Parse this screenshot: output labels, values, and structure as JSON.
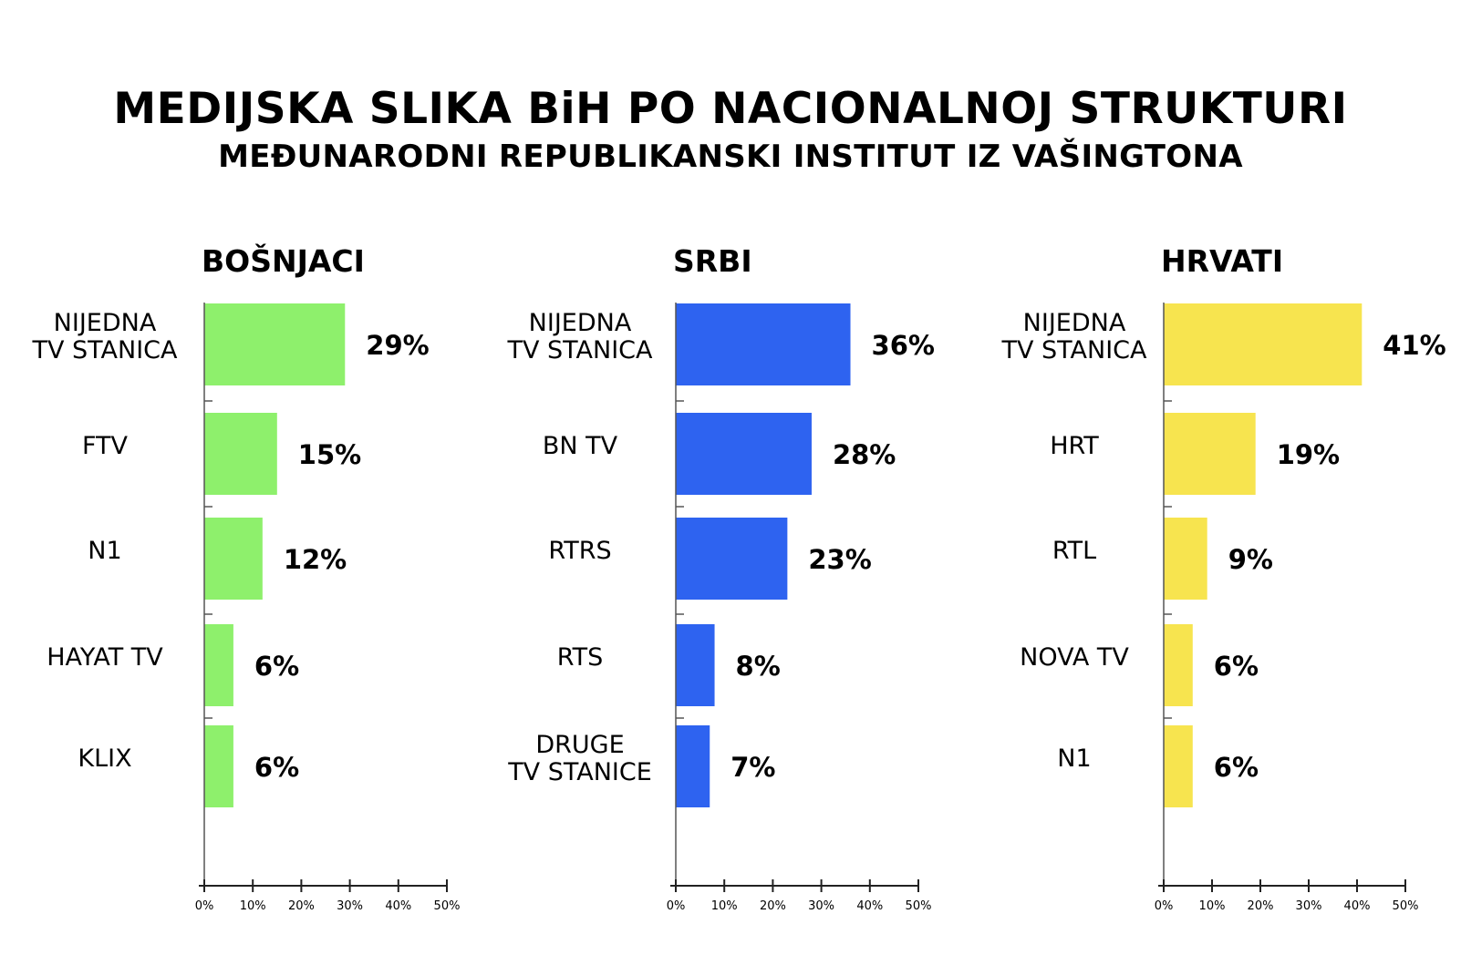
{
  "header": {
    "title": "MEDIJSKA SLIKA BiH PO NACIONALNOJ STRUKTURI",
    "subtitle": "MEĐUNARODNI REPUBLIKANSKI INSTITUT IZ VAŠINGTONA"
  },
  "chart_data": [
    {
      "type": "bar",
      "orientation": "horizontal",
      "title": "BOŠNJACI",
      "color": "#8ef06c",
      "categories": [
        "NIJEDNA\nTV STANICA",
        "FTV",
        "N1",
        "HAYAT TV",
        "KLIX"
      ],
      "values": [
        29,
        15,
        12,
        6,
        6
      ],
      "value_labels": [
        "29%",
        "15%",
        "12%",
        "6%",
        "6%"
      ],
      "xlim": [
        0,
        50
      ],
      "xticks": [
        "0%",
        "10%",
        "20%",
        "30%",
        "40%",
        "50%"
      ]
    },
    {
      "type": "bar",
      "orientation": "horizontal",
      "title": "SRBI",
      "color": "#2e63f0",
      "categories": [
        "NIJEDNA\nTV STANICA",
        "BN TV",
        "RTRS",
        "RTS",
        "DRUGE\nTV STANICE"
      ],
      "values": [
        36,
        28,
        23,
        8,
        7
      ],
      "value_labels": [
        "36%",
        "28%",
        "23%",
        "8%",
        "7%"
      ],
      "xlim": [
        0,
        50
      ],
      "xticks": [
        "0%",
        "10%",
        "20%",
        "30%",
        "40%",
        "50%"
      ]
    },
    {
      "type": "bar",
      "orientation": "horizontal",
      "title": "HRVATI",
      "color": "#f7e44f",
      "categories": [
        "NIJEDNA\nTV STANICA",
        "HRT",
        "RTL",
        "NOVA TV",
        "N1"
      ],
      "values": [
        41,
        19,
        9,
        6,
        6
      ],
      "value_labels": [
        "41%",
        "19%",
        "9%",
        "6%",
        "6%"
      ],
      "xlim": [
        0,
        50
      ],
      "xticks": [
        "0%",
        "10%",
        "20%",
        "30%",
        "40%",
        "50%"
      ]
    }
  ]
}
